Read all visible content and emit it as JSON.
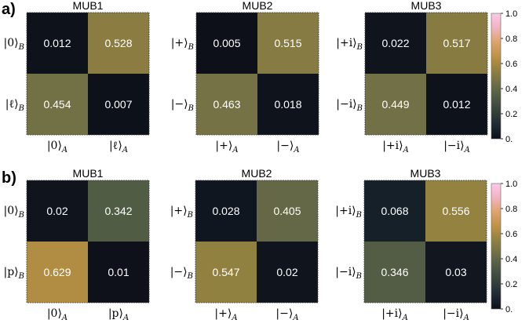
{
  "colors": {
    "colormap": [
      "#0c0f18",
      "#1d2a33",
      "#35433c",
      "#4f5a45",
      "#6f6f47",
      "#948240",
      "#c09346",
      "#e0a46f",
      "#f2b4c2",
      "#fbc9e6"
    ]
  },
  "chart_data": [
    {
      "type": "heatmap",
      "panel": "a)",
      "colorbar": {
        "range": [
          0,
          1
        ],
        "ticks": [
          "1.0",
          "0.8",
          "0.6",
          "0.4",
          "0.2",
          "0."
        ]
      },
      "subplots": [
        {
          "title": "MUB1",
          "rows": [
            {
              "ket": "0",
              "sub": "B"
            },
            {
              "ket": "ℓ",
              "sub": "B"
            }
          ],
          "cols": [
            {
              "ket": "0",
              "sub": "A"
            },
            {
              "ket": "ℓ",
              "sub": "A"
            }
          ],
          "values": [
            [
              0.012,
              0.528
            ],
            [
              0.454,
              0.007
            ]
          ],
          "labels": [
            [
              "0.012",
              "0.528"
            ],
            [
              "0.454",
              "0.007"
            ]
          ]
        },
        {
          "title": "MUB2",
          "rows": [
            {
              "ket": "+",
              "sub": "B"
            },
            {
              "ket": "−",
              "sub": "B"
            }
          ],
          "cols": [
            {
              "ket": "+",
              "sub": "A"
            },
            {
              "ket": "−",
              "sub": "A"
            }
          ],
          "values": [
            [
              0.005,
              0.515
            ],
            [
              0.463,
              0.018
            ]
          ],
          "labels": [
            [
              "0.005",
              "0.515"
            ],
            [
              "0.463",
              "0.018"
            ]
          ]
        },
        {
          "title": "MUB3",
          "rows": [
            {
              "ket": "+i",
              "sub": "B"
            },
            {
              "ket": "−i",
              "sub": "B"
            }
          ],
          "cols": [
            {
              "ket": "+i",
              "sub": "A"
            },
            {
              "ket": "−i",
              "sub": "A"
            }
          ],
          "values": [
            [
              0.022,
              0.517
            ],
            [
              0.449,
              0.012
            ]
          ],
          "labels": [
            [
              "0.022",
              "0.517"
            ],
            [
              "0.449",
              "0.012"
            ]
          ]
        }
      ]
    },
    {
      "type": "heatmap",
      "panel": "b)",
      "colorbar": {
        "range": [
          0,
          1
        ],
        "ticks": [
          "1.0",
          "0.8",
          "0.6",
          "0.4",
          "0.2",
          "0."
        ]
      },
      "subplots": [
        {
          "title": "MUB1",
          "rows": [
            {
              "ket": "0",
              "sub": "B"
            },
            {
              "ket": "p",
              "sub": "B"
            }
          ],
          "cols": [
            {
              "ket": "0",
              "sub": "A"
            },
            {
              "ket": "p",
              "sub": "A"
            }
          ],
          "values": [
            [
              0.02,
              0.342
            ],
            [
              0.629,
              0.01
            ]
          ],
          "labels": [
            [
              "0.02",
              "0.342"
            ],
            [
              "0.629",
              "0.01"
            ]
          ]
        },
        {
          "title": "MUB2",
          "rows": [
            {
              "ket": "+",
              "sub": "B"
            },
            {
              "ket": "−",
              "sub": "B"
            }
          ],
          "cols": [
            {
              "ket": "+",
              "sub": "A"
            },
            {
              "ket": "−",
              "sub": "A"
            }
          ],
          "values": [
            [
              0.028,
              0.405
            ],
            [
              0.547,
              0.02
            ]
          ],
          "labels": [
            [
              "0.028",
              "0.405"
            ],
            [
              "0.547",
              "0.02"
            ]
          ]
        },
        {
          "title": "MUB3",
          "rows": [
            {
              "ket": "+i",
              "sub": "B"
            },
            {
              "ket": "−i",
              "sub": "B"
            }
          ],
          "cols": [
            {
              "ket": "+i",
              "sub": "A"
            },
            {
              "ket": "−i",
              "sub": "A"
            }
          ],
          "values": [
            [
              0.068,
              0.556
            ],
            [
              0.346,
              0.03
            ]
          ],
          "labels": [
            [
              "0.068",
              "0.556"
            ],
            [
              "0.346",
              "0.03"
            ]
          ]
        }
      ]
    }
  ]
}
